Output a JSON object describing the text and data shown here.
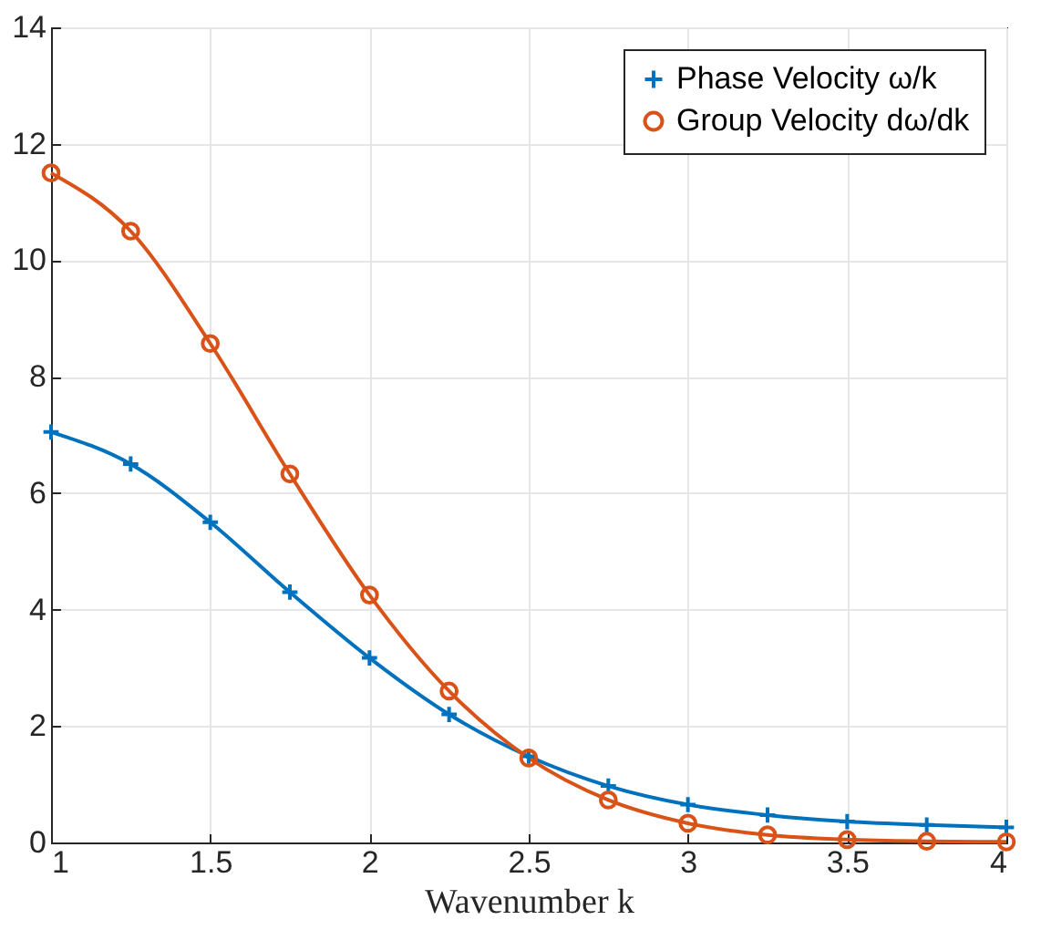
{
  "chart_data": {
    "type": "line",
    "xlabel": "Wavenumber k",
    "x": [
      1,
      1.25,
      1.5,
      1.75,
      2,
      2.25,
      2.5,
      2.75,
      3,
      3.25,
      3.5,
      3.75,
      4
    ],
    "series": [
      {
        "name": "Phase Velocity ω/k",
        "color": "#0072bd",
        "marker": "cross",
        "values": [
          7.05,
          6.5,
          5.5,
          4.3,
          3.17,
          2.2,
          1.48,
          0.97,
          0.65,
          0.47,
          0.36,
          0.3,
          0.26
        ]
      },
      {
        "name": "Group Velocity dω/dk",
        "color": "#d95319",
        "marker": "circle",
        "values": [
          11.5,
          10.5,
          8.57,
          6.33,
          4.25,
          2.6,
          1.45,
          0.73,
          0.33,
          0.13,
          0.05,
          0.02,
          0.01
        ]
      }
    ],
    "xlim": [
      1,
      4
    ],
    "xticks": [
      1,
      1.5,
      2,
      2.5,
      3,
      3.5,
      4
    ],
    "ylim": [
      0,
      14
    ],
    "yticks": [
      0,
      2,
      4,
      6,
      8,
      10,
      12,
      14
    ],
    "grid": true,
    "legend": "top right",
    "line_style": "solid"
  }
}
